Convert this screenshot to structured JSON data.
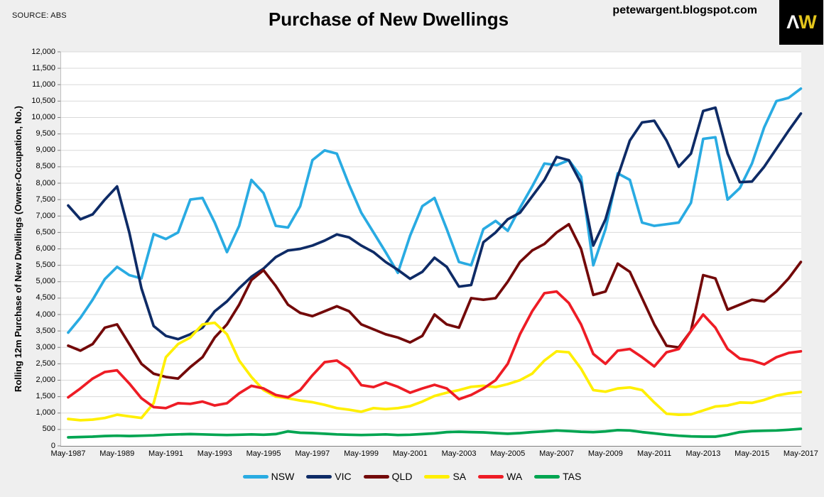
{
  "header": {
    "source": "SOURCE: ABS",
    "title": "Purchase of New Dwellings",
    "site": "petewargent.blogspot.com",
    "logo": {
      "letter1": "Λ",
      "letter2": "W"
    }
  },
  "chart_data": {
    "type": "line",
    "title": "Purchase of New Dwellings",
    "ylabel": "Rolling 12m Purchase of New Dwellings (Owner-Occupation, No.)",
    "ylim": [
      0,
      12000
    ],
    "ytick_step": 500,
    "grid": "horizontal",
    "legend_position": "bottom",
    "x_range": [
      "May-1987",
      "May-2017"
    ],
    "x_months_between_points": 6,
    "x_tick_labels": [
      "May-1987",
      "May-1989",
      "May-1991",
      "May-1993",
      "May-1995",
      "May-1997",
      "May-1999",
      "May-2001",
      "May-2003",
      "May-2005",
      "May-2007",
      "May-2009",
      "May-2011",
      "May-2013",
      "May-2015",
      "May-2017"
    ],
    "series": [
      {
        "name": "NSW",
        "color": "#29abe2",
        "values": [
          3450,
          3900,
          4450,
          5080,
          5450,
          5200,
          5100,
          6450,
          6300,
          6500,
          7500,
          7550,
          6800,
          5900,
          6700,
          8100,
          7700,
          6700,
          6650,
          7300,
          8700,
          9000,
          8900,
          7950,
          7100,
          6500,
          5900,
          5270,
          6400,
          7300,
          7550,
          6600,
          5600,
          5500,
          6600,
          6850,
          6550,
          7250,
          7900,
          8600,
          8550,
          8700,
          8200,
          5500,
          6600,
          8300,
          8100,
          6800,
          6700,
          6750,
          6800,
          7400,
          9350,
          9400,
          7500,
          7850,
          8600,
          9700,
          10500,
          10600,
          10880
        ]
      },
      {
        "name": "VIC",
        "color": "#0e2b66",
        "values": [
          7320,
          6900,
          7050,
          7500,
          7900,
          6500,
          4800,
          3650,
          3350,
          3250,
          3400,
          3600,
          4100,
          4400,
          4800,
          5150,
          5400,
          5750,
          5950,
          6000,
          6100,
          6250,
          6440,
          6350,
          6100,
          5900,
          5600,
          5360,
          5090,
          5300,
          5730,
          5450,
          4850,
          4900,
          6200,
          6500,
          6900,
          7100,
          7600,
          8100,
          8800,
          8700,
          8000,
          6100,
          6900,
          8200,
          9300,
          9850,
          9900,
          9300,
          8500,
          8900,
          10200,
          10300,
          8900,
          8030,
          8050,
          8500,
          9050,
          9600,
          10120
        ]
      },
      {
        "name": "QLD",
        "color": "#730909",
        "values": [
          3050,
          2900,
          3100,
          3600,
          3700,
          3100,
          2500,
          2200,
          2100,
          2050,
          2400,
          2700,
          3300,
          3700,
          4300,
          5050,
          5350,
          4870,
          4300,
          4050,
          3950,
          4100,
          4250,
          4100,
          3700,
          3550,
          3400,
          3300,
          3150,
          3350,
          4000,
          3700,
          3600,
          4500,
          4450,
          4500,
          5000,
          5600,
          5950,
          6150,
          6500,
          6750,
          6000,
          4600,
          4700,
          5550,
          5300,
          4500,
          3700,
          3050,
          3000,
          3500,
          5200,
          5100,
          4150,
          4300,
          4450,
          4400,
          4700,
          5100,
          5600
        ]
      },
      {
        "name": "SA",
        "color": "#ffef00",
        "values": [
          820,
          780,
          800,
          850,
          950,
          900,
          850,
          1300,
          2700,
          3100,
          3300,
          3700,
          3750,
          3400,
          2600,
          2100,
          1700,
          1500,
          1450,
          1380,
          1330,
          1250,
          1150,
          1100,
          1040,
          1150,
          1120,
          1150,
          1210,
          1350,
          1520,
          1620,
          1700,
          1800,
          1830,
          1790,
          1880,
          2000,
          2200,
          2600,
          2880,
          2850,
          2350,
          1700,
          1650,
          1750,
          1780,
          1700,
          1320,
          980,
          950,
          960,
          1080,
          1200,
          1230,
          1320,
          1310,
          1400,
          1530,
          1600,
          1640
        ]
      },
      {
        "name": "WA",
        "color": "#ee1c25",
        "values": [
          1480,
          1750,
          2050,
          2250,
          2300,
          1900,
          1450,
          1180,
          1150,
          1300,
          1280,
          1350,
          1230,
          1300,
          1600,
          1830,
          1750,
          1550,
          1480,
          1700,
          2150,
          2550,
          2600,
          2350,
          1850,
          1790,
          1930,
          1800,
          1620,
          1750,
          1860,
          1750,
          1420,
          1550,
          1750,
          2000,
          2500,
          3400,
          4100,
          4650,
          4700,
          4350,
          3700,
          2800,
          2500,
          2900,
          2950,
          2700,
          2420,
          2850,
          2950,
          3500,
          4000,
          3600,
          2950,
          2660,
          2600,
          2480,
          2700,
          2830,
          2880
        ]
      },
      {
        "name": "TAS",
        "color": "#00a551",
        "values": [
          260,
          270,
          280,
          300,
          310,
          300,
          310,
          320,
          340,
          350,
          360,
          350,
          340,
          330,
          340,
          350,
          340,
          360,
          440,
          400,
          390,
          370,
          350,
          340,
          330,
          340,
          350,
          330,
          340,
          360,
          380,
          420,
          430,
          420,
          410,
          390,
          370,
          390,
          420,
          440,
          470,
          450,
          430,
          420,
          440,
          480,
          470,
          420,
          380,
          340,
          310,
          290,
          280,
          280,
          340,
          420,
          450,
          460,
          470,
          490,
          520
        ]
      }
    ]
  }
}
